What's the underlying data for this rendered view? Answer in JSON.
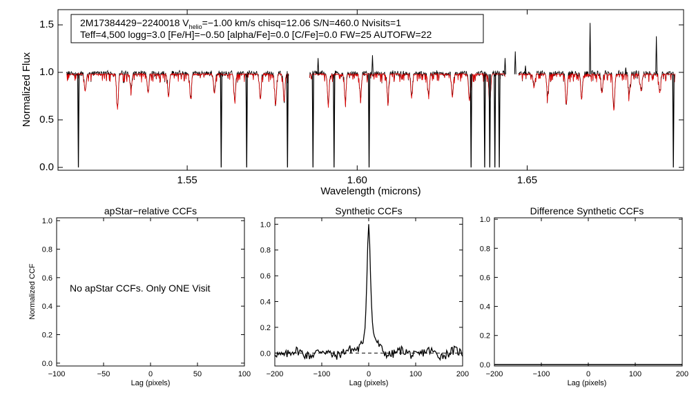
{
  "colors": {
    "observed": "#000000",
    "model": "#e00000",
    "axis": "#000000",
    "zero_line": "#000000"
  },
  "chart_data": [
    {
      "id": "spectrum",
      "type": "line",
      "xlabel": "Wavelength (microns)",
      "ylabel": "Normalized Flux",
      "xlim": [
        1.512,
        1.696
      ],
      "ylim": [
        -0.03,
        1.66
      ],
      "x_ticks": [
        1.55,
        1.6,
        1.65
      ],
      "x_tick_labels": [
        "1.55",
        "1.60",
        "1.65"
      ],
      "y_ticks": [
        0.0,
        0.5,
        1.0,
        1.5
      ],
      "y_tick_labels": [
        "0.0",
        "0.5",
        "1.0",
        "1.5"
      ],
      "info_line1_a": "2M17384429−2240018  V",
      "info_line1_sub": "helio",
      "info_line1_b": "=−1.00 km/s  chisq=12.06  S/N=460.0  Nvisits=1",
      "info_line2": "Teff=4,500 logg=3.0 [Fe/H]=−0.50 [alpha/Fe]=0.0 [C/Fe]=0.0 FW=25 AUTOFW=22",
      "chips": [
        [
          1.5145,
          1.58
        ],
        [
          1.586,
          1.6435
        ],
        [
          1.6475,
          1.6935
        ]
      ],
      "series": [
        {
          "name": "observed",
          "continuum": 0.98
        },
        {
          "name": "model",
          "continuum": 0.98
        }
      ],
      "bad_pixel_drops": [
        1.518,
        1.56,
        1.5675,
        1.5795,
        1.587,
        1.5932,
        1.6035,
        1.6335,
        1.6375,
        1.639,
        1.6405,
        1.6418,
        1.693
      ],
      "emission_spikes": [
        {
          "x": 1.6685,
          "y": 1.52
        },
        {
          "x": 1.688,
          "y": 1.38
        },
        {
          "x": 1.6465,
          "y": 1.22
        },
        {
          "x": 1.6435,
          "y": 1.15
        },
        {
          "x": 1.6045,
          "y": 1.18
        },
        {
          "x": 1.5885,
          "y": 1.15
        },
        {
          "x": 1.6495,
          "y": 1.07
        },
        {
          "x": 1.679,
          "y": 1.05
        }
      ],
      "absorption_lines": [
        {
          "x": 1.52,
          "y": 0.8
        },
        {
          "x": 1.5295,
          "y": 0.62
        },
        {
          "x": 1.5335,
          "y": 0.82
        },
        {
          "x": 1.5385,
          "y": 0.78
        },
        {
          "x": 1.5445,
          "y": 0.74
        },
        {
          "x": 1.551,
          "y": 0.72
        },
        {
          "x": 1.558,
          "y": 0.78
        },
        {
          "x": 1.564,
          "y": 0.7
        },
        {
          "x": 1.5715,
          "y": 0.72
        },
        {
          "x": 1.576,
          "y": 0.65
        },
        {
          "x": 1.5785,
          "y": 0.7
        },
        {
          "x": 1.5915,
          "y": 0.66
        },
        {
          "x": 1.5965,
          "y": 0.7
        },
        {
          "x": 1.601,
          "y": 0.74
        },
        {
          "x": 1.609,
          "y": 0.72
        },
        {
          "x": 1.616,
          "y": 0.74
        },
        {
          "x": 1.621,
          "y": 0.76
        },
        {
          "x": 1.628,
          "y": 0.74
        },
        {
          "x": 1.633,
          "y": 0.7
        },
        {
          "x": 1.639,
          "y": 0.66
        },
        {
          "x": 1.652,
          "y": 0.84
        },
        {
          "x": 1.656,
          "y": 0.74
        },
        {
          "x": 1.6615,
          "y": 0.66
        },
        {
          "x": 1.666,
          "y": 0.72
        },
        {
          "x": 1.672,
          "y": 0.78
        },
        {
          "x": 1.6755,
          "y": 0.6
        },
        {
          "x": 1.68,
          "y": 0.76
        },
        {
          "x": 1.6835,
          "y": 0.8
        },
        {
          "x": 1.689,
          "y": 0.78
        }
      ]
    },
    {
      "id": "apstar",
      "type": "line",
      "title": "apStar−relative CCFs",
      "xlabel": "Lag (pixels)",
      "ylabel": "Normalized CCF",
      "xlim": [
        -100,
        100
      ],
      "ylim": [
        -0.02,
        1.02
      ],
      "x_ticks": [
        -100,
        -50,
        0,
        50,
        100
      ],
      "x_tick_labels": [
        "−100",
        "−50",
        "0",
        "50",
        "100"
      ],
      "y_ticks": [
        0.0,
        0.2,
        0.4,
        0.6,
        0.8,
        1.0
      ],
      "y_tick_labels": [
        "0.0",
        "0.2",
        "0.4",
        "0.6",
        "0.8",
        "1.0"
      ],
      "message": "No apStar CCFs.  Only ONE Visit"
    },
    {
      "id": "synthetic",
      "type": "line",
      "title": "Synthetic CCFs",
      "xlabel": "Lag (pixels)",
      "xlim": [
        -200,
        200
      ],
      "ylim": [
        -0.1,
        1.05
      ],
      "x_ticks": [
        -200,
        -100,
        0,
        100,
        200
      ],
      "x_tick_labels": [
        "−200",
        "−100",
        "0",
        "100",
        "200"
      ],
      "y_ticks": [
        0.0,
        0.2,
        0.4,
        0.6,
        0.8,
        1.0
      ],
      "y_tick_labels": [
        "0.0",
        "0.2",
        "0.4",
        "0.6",
        "0.8",
        "1.0"
      ],
      "zero_level": 0.0,
      "peak": {
        "x": 0,
        "y": 1.0
      }
    },
    {
      "id": "difference",
      "type": "line",
      "title": "Difference Synthetic CCFs",
      "xlabel": "Lag (pixels)",
      "xlim": [
        -200,
        200
      ],
      "ylim": [
        -0.01,
        1.01
      ],
      "x_ticks": [
        -200,
        -100,
        0,
        100,
        200
      ],
      "x_tick_labels": [
        "−200",
        "−100",
        "0",
        "100",
        "200"
      ],
      "y_ticks": [
        0.0,
        0.2,
        0.4,
        0.6,
        0.8,
        1.0
      ],
      "y_tick_labels": [
        "0.0",
        "0.2",
        "0.4",
        "0.6",
        "0.8",
        "1.0"
      ],
      "series_level": 0.0
    }
  ]
}
